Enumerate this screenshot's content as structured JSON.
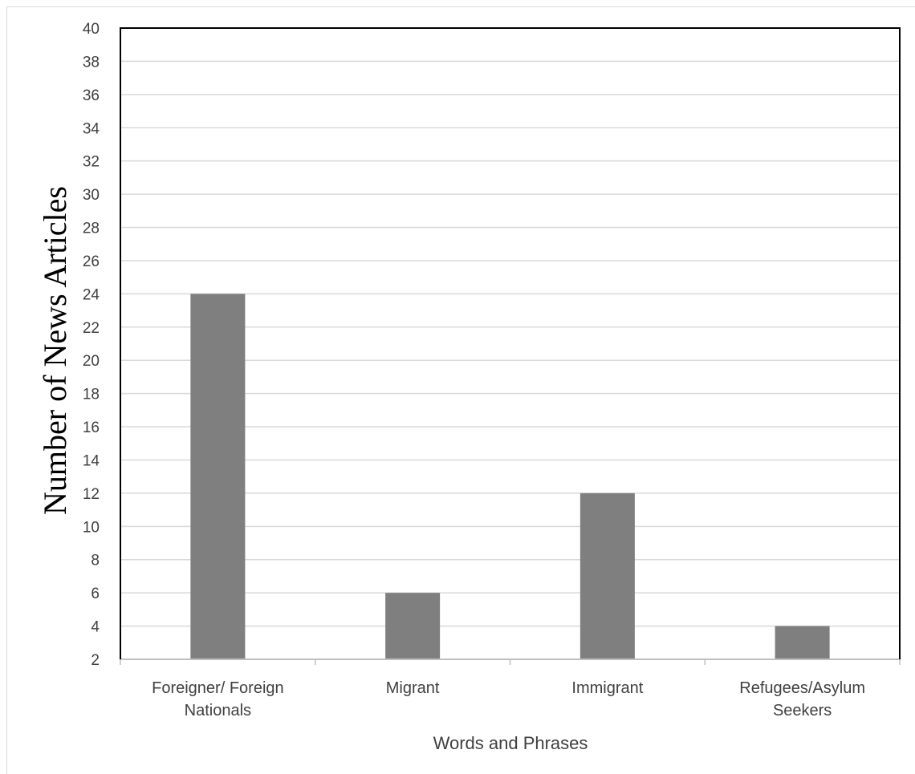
{
  "chart_data": {
    "type": "bar",
    "categories": [
      [
        "Foreigner/ Foreign",
        "Nationals"
      ],
      [
        "Migrant"
      ],
      [
        "Immigrant"
      ],
      [
        "Refugees/Asylum",
        "Seekers"
      ]
    ],
    "values": [
      24,
      6,
      12,
      4
    ],
    "title": "",
    "xlabel": "Words and Phrases",
    "ylabel": "Number of News Articles",
    "ylim": [
      2,
      40
    ],
    "yticks": [
      "2",
      "4",
      "6",
      "8",
      "10",
      "12",
      "14",
      "16",
      "18",
      "20",
      "22",
      "24",
      "26",
      "28",
      "30",
      "32",
      "34",
      "36",
      "38",
      "40"
    ],
    "grid": true,
    "legend": "none",
    "colors": {
      "bar": "#7f7f7f",
      "grid": "#d9d9d9",
      "border": "#000000",
      "text": "#404040"
    }
  }
}
